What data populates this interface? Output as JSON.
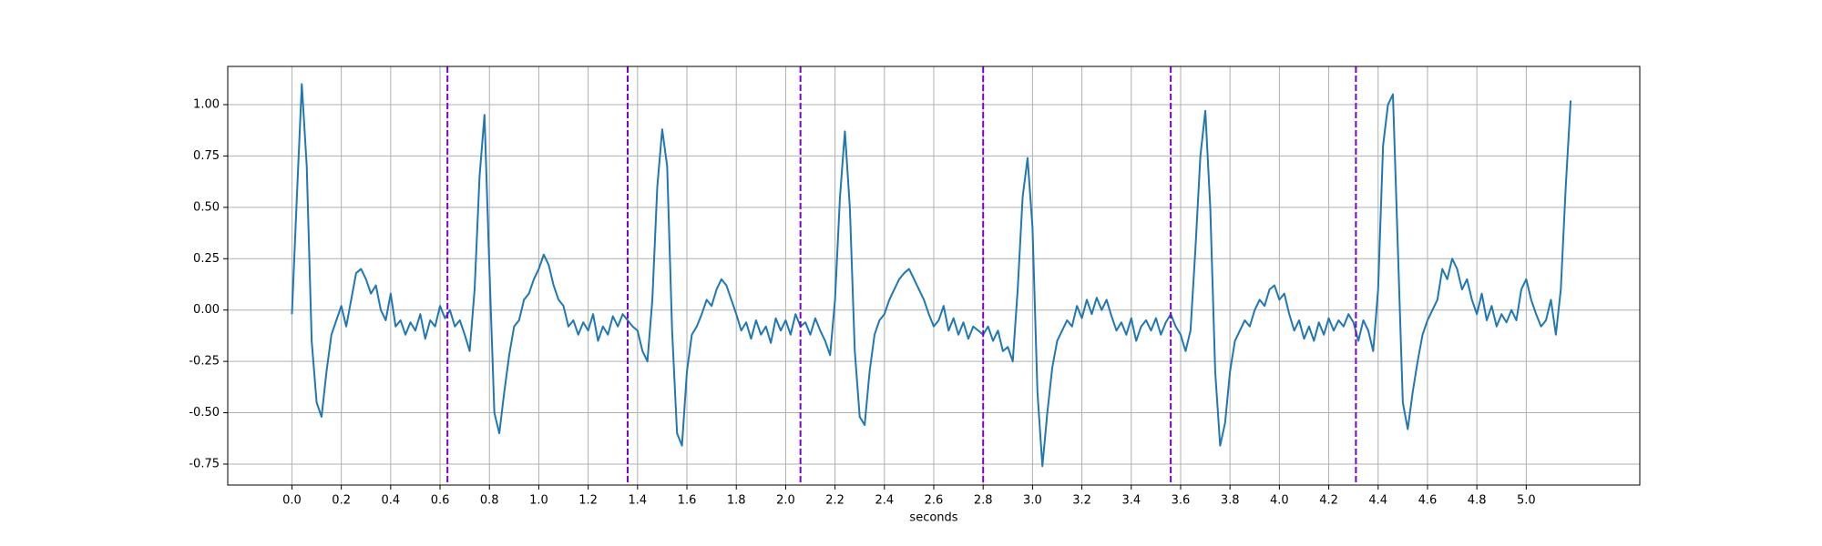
{
  "chart_data": {
    "type": "line",
    "x_label": "seconds",
    "color": "#1f77b4",
    "grid": true,
    "x": [
      0,
      0.02,
      0.04,
      0.06,
      0.08,
      0.1,
      0.12,
      0.14,
      0.16,
      0.18,
      0.2,
      0.22,
      0.24,
      0.26,
      0.28,
      0.3,
      0.32,
      0.34,
      0.36,
      0.38,
      0.4,
      0.42,
      0.44,
      0.46,
      0.48,
      0.5,
      0.52,
      0.54,
      0.56,
      0.58,
      0.6,
      0.62,
      0.64,
      0.66,
      0.68,
      0.7,
      0.72,
      0.74,
      0.76,
      0.78,
      0.8,
      0.82,
      0.84,
      0.86,
      0.88,
      0.9,
      0.92,
      0.94,
      0.96,
      0.98,
      1,
      1.02,
      1.04,
      1.06,
      1.08,
      1.1,
      1.12,
      1.14,
      1.16,
      1.18,
      1.2,
      1.22,
      1.24,
      1.26,
      1.28,
      1.3,
      1.32,
      1.34,
      1.36,
      1.38,
      1.4,
      1.42,
      1.44,
      1.46,
      1.48,
      1.5,
      1.52,
      1.54,
      1.56,
      1.58,
      1.6,
      1.62,
      1.64,
      1.66,
      1.68,
      1.7,
      1.72,
      1.74,
      1.76,
      1.78,
      1.8,
      1.82,
      1.84,
      1.86,
      1.88,
      1.9,
      1.92,
      1.94,
      1.96,
      1.98,
      2,
      2.02,
      2.04,
      2.06,
      2.08,
      2.1,
      2.12,
      2.14,
      2.16,
      2.18,
      2.2,
      2.22,
      2.24,
      2.26,
      2.28,
      2.3,
      2.32,
      2.34,
      2.36,
      2.38,
      2.4,
      2.42,
      2.44,
      2.46,
      2.48,
      2.5,
      2.52,
      2.54,
      2.56,
      2.58,
      2.6,
      2.62,
      2.64,
      2.66,
      2.68,
      2.7,
      2.72,
      2.74,
      2.76,
      2.78,
      2.8,
      2.82,
      2.84,
      2.86,
      2.88,
      2.9,
      2.92,
      2.94,
      2.96,
      2.98,
      3,
      3.02,
      3.04,
      3.06,
      3.08,
      3.1,
      3.12,
      3.14,
      3.16,
      3.18,
      3.2,
      3.22,
      3.24,
      3.26,
      3.28,
      3.3,
      3.32,
      3.34,
      3.36,
      3.38,
      3.4,
      3.42,
      3.44,
      3.46,
      3.48,
      3.5,
      3.52,
      3.54,
      3.56,
      3.58,
      3.6,
      3.62,
      3.64,
      3.66,
      3.68,
      3.7,
      3.72,
      3.74,
      3.76,
      3.78,
      3.8,
      3.82,
      3.84,
      3.86,
      3.88,
      3.9,
      3.92,
      3.94,
      3.96,
      3.98,
      4,
      4.02,
      4.04,
      4.06,
      4.08,
      4.1,
      4.12,
      4.14,
      4.16,
      4.18,
      4.2,
      4.22,
      4.24,
      4.26,
      4.28,
      4.3,
      4.32,
      4.34,
      4.36,
      4.38,
      4.4,
      4.42,
      4.44,
      4.46,
      4.48,
      4.5,
      4.52,
      4.54,
      4.56,
      4.58,
      4.6,
      4.62,
      4.64,
      4.66,
      4.68,
      4.7,
      4.72,
      4.74,
      4.76,
      4.78,
      4.8,
      4.82,
      4.84,
      4.86,
      4.88,
      4.9,
      4.92,
      4.94,
      4.96,
      4.98,
      5,
      5.02,
      5.04,
      5.06,
      5.08,
      5.1,
      5.12,
      5.14,
      5.16,
      5.18
    ],
    "values": [
      -0.02,
      0.55,
      1.1,
      0.7,
      -0.15,
      -0.45,
      -0.52,
      -0.3,
      -0.12,
      -0.05,
      0.02,
      -0.08,
      0.05,
      0.18,
      0.2,
      0.15,
      0.08,
      0.12,
      0,
      -0.05,
      0.08,
      -0.08,
      -0.05,
      -0.12,
      -0.06,
      -0.1,
      -0.02,
      -0.14,
      -0.05,
      -0.08,
      0.02,
      -0.04,
      0,
      -0.08,
      -0.05,
      -0.12,
      -0.2,
      0.1,
      0.65,
      0.95,
      0.2,
      -0.5,
      -0.6,
      -0.4,
      -0.22,
      -0.08,
      -0.05,
      0.05,
      0.08,
      0.15,
      0.2,
      0.27,
      0.22,
      0.12,
      0.05,
      0.02,
      -0.08,
      -0.05,
      -0.12,
      -0.06,
      -0.1,
      -0.02,
      -0.15,
      -0.08,
      -0.12,
      -0.03,
      -0.08,
      -0.02,
      -0.05,
      -0.08,
      -0.1,
      -0.2,
      -0.25,
      0.05,
      0.6,
      0.88,
      0.7,
      -0.1,
      -0.6,
      -0.66,
      -0.3,
      -0.12,
      -0.08,
      -0.02,
      0.05,
      0.02,
      0.1,
      0.15,
      0.12,
      0.05,
      -0.02,
      -0.1,
      -0.06,
      -0.14,
      -0.05,
      -0.12,
      -0.08,
      -0.16,
      -0.04,
      -0.1,
      -0.05,
      -0.12,
      -0.02,
      -0.08,
      -0.06,
      -0.12,
      -0.04,
      -0.1,
      -0.15,
      -0.22,
      0.05,
      0.55,
      0.87,
      0.5,
      -0.2,
      -0.52,
      -0.56,
      -0.3,
      -0.12,
      -0.05,
      -0.02,
      0.05,
      0.1,
      0.15,
      0.18,
      0.2,
      0.15,
      0.1,
      0.05,
      -0.02,
      -0.08,
      -0.05,
      0.02,
      -0.1,
      -0.04,
      -0.12,
      -0.06,
      -0.14,
      -0.08,
      -0.1,
      -0.12,
      -0.08,
      -0.15,
      -0.1,
      -0.2,
      -0.18,
      -0.25,
      0.1,
      0.55,
      0.74,
      0.4,
      -0.4,
      -0.76,
      -0.5,
      -0.28,
      -0.15,
      -0.1,
      -0.05,
      -0.08,
      0.02,
      -0.04,
      0.05,
      -0.02,
      0.06,
      0,
      0.05,
      -0.03,
      -0.1,
      -0.06,
      -0.12,
      -0.04,
      -0.15,
      -0.08,
      -0.05,
      -0.1,
      -0.04,
      -0.12,
      -0.06,
      -0.02,
      -0.08,
      -0.12,
      -0.2,
      -0.1,
      0.3,
      0.75,
      0.97,
      0.5,
      -0.3,
      -0.66,
      -0.55,
      -0.3,
      -0.15,
      -0.1,
      -0.05,
      -0.08,
      0,
      0.05,
      0.02,
      0.1,
      0.12,
      0.05,
      0.08,
      -0.02,
      -0.1,
      -0.05,
      -0.14,
      -0.08,
      -0.15,
      -0.06,
      -0.12,
      -0.04,
      -0.1,
      -0.05,
      -0.08,
      -0.02,
      -0.06,
      -0.15,
      -0.05,
      -0.1,
      -0.2,
      0.1,
      0.8,
      1,
      1.05,
      0.3,
      -0.45,
      -0.58,
      -0.4,
      -0.25,
      -0.12,
      -0.05,
      0,
      0.05,
      0.2,
      0.15,
      0.25,
      0.2,
      0.1,
      0.15,
      0.05,
      -0.02,
      0.08,
      -0.05,
      0.02,
      -0.08,
      -0.02,
      -0.06,
      0,
      -0.05,
      0.1,
      0.15,
      0.05,
      -0.02,
      -0.08,
      -0.05,
      0.05,
      -0.12,
      0.1,
      0.6,
      1.02
    ],
    "vlines": [
      0.63,
      1.36,
      2.06,
      2.8,
      3.56,
      4.31
    ],
    "vline_color": "#7b00d4",
    "xlim": [
      -0.26,
      5.46
    ],
    "ylim": [
      -0.852,
      1.186
    ],
    "xticks": [
      {
        "value": 0,
        "label": "0.0"
      },
      0.2,
      0.4,
      0.6,
      0.8,
      {
        "value": 1,
        "label": "1.0"
      },
      1.2,
      1.4,
      1.6,
      1.8,
      {
        "value": 2,
        "label": "2.0"
      },
      2.2,
      2.4,
      2.6,
      2.8,
      {
        "value": 3,
        "label": "3.0"
      },
      3.2,
      3.4,
      3.6,
      3.8,
      {
        "value": 4,
        "label": "4.0"
      },
      4.2,
      4.4,
      4.6,
      4.8,
      {
        "value": 5,
        "label": "5.0"
      }
    ],
    "yticks": [
      -0.75,
      {
        "value": -0.5,
        "label": "-0.50"
      },
      -0.25,
      {
        "value": 0,
        "label": "0.00"
      },
      0.25,
      {
        "value": 0.5,
        "label": "0.50"
      },
      0.75,
      {
        "value": 1,
        "label": "1.00"
      }
    ]
  }
}
